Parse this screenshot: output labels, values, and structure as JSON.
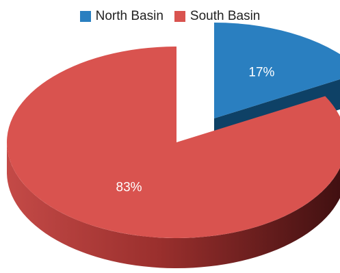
{
  "chart_data": {
    "type": "pie",
    "style": "3d-exploded",
    "series": [
      {
        "name": "North Basin",
        "value": 17,
        "label": "17%",
        "color": "#2a7fc0"
      },
      {
        "name": "South Basin",
        "value": 83,
        "label": "83%",
        "color": "#d9534f"
      }
    ],
    "legend_position": "top"
  }
}
